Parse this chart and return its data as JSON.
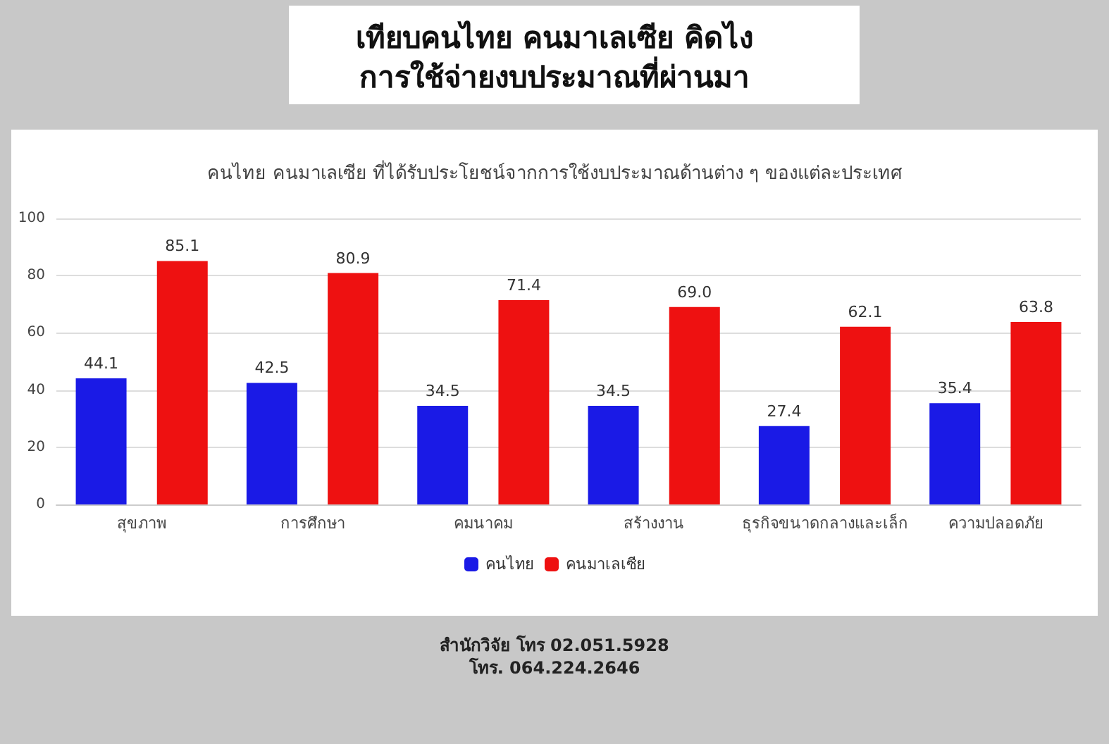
{
  "chart_data": {
    "type": "bar",
    "title": "เทียบคนไทย คนมาเลเซีย คิดไง\nการใช้จ่ายงบประมาณที่ผ่านมา",
    "subtitle": "คนไทย คนมาเลเซีย ที่ได้รับประโยชน์จากการใช้งบประมาณด้านต่าง ๆ ของแต่ละประเทศ",
    "categories": [
      "สุขภาพ",
      "การศึกษา",
      "คมนาคม",
      "สร้างงาน",
      "ธุรกิจขนาดกลางและเล็ก",
      "ความปลอดภัย"
    ],
    "series": [
      {
        "name": "คนไทย",
        "color": "#1a1ae6",
        "values": [
          44.1,
          42.5,
          34.5,
          34.5,
          27.4,
          35.4
        ]
      },
      {
        "name": "คนมาเลเซีย",
        "color": "#ee1111",
        "values": [
          85.1,
          80.9,
          71.4,
          69.0,
          62.1,
          63.8
        ],
        "value_labels": [
          "85.1",
          "80.9",
          "71.4",
          "69.0",
          "62.1",
          "63.8"
        ]
      }
    ],
    "ylim": [
      0,
      100
    ],
    "yticks": [
      0,
      20,
      40,
      60,
      80,
      100
    ],
    "grid": "y",
    "legend": "bottom",
    "data_labels": true,
    "annotations": [
      "สำนักวิจัย โทร 02.051.5928",
      "โทร. 064.224.2646"
    ]
  }
}
